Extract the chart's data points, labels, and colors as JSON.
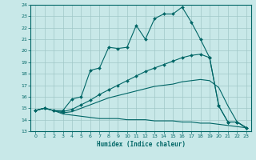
{
  "xlabel": "Humidex (Indice chaleur)",
  "background_color": "#c8e8e8",
  "grid_color": "#a0c8c8",
  "line_color": "#006666",
  "xlim": [
    -0.5,
    23.5
  ],
  "ylim": [
    13,
    24
  ],
  "x_ticks": [
    0,
    1,
    2,
    3,
    4,
    5,
    6,
    7,
    8,
    9,
    10,
    11,
    12,
    13,
    14,
    15,
    16,
    17,
    18,
    19,
    20,
    21,
    22,
    23
  ],
  "y_ticks": [
    13,
    14,
    15,
    16,
    17,
    18,
    19,
    20,
    21,
    22,
    23,
    24
  ],
  "line1_x": [
    0,
    1,
    2,
    3,
    4,
    5,
    6,
    7,
    8,
    9,
    10,
    11,
    12,
    13,
    14,
    15,
    16,
    17,
    18,
    19,
    20,
    21,
    22,
    23
  ],
  "line1_y": [
    14.8,
    15.0,
    14.8,
    14.8,
    15.8,
    16.0,
    18.3,
    18.5,
    20.3,
    20.2,
    20.3,
    22.2,
    21.0,
    22.8,
    23.2,
    23.2,
    23.8,
    22.5,
    21.0,
    19.4,
    15.2,
    13.8,
    13.8,
    13.3
  ],
  "line2_x": [
    0,
    1,
    2,
    3,
    4,
    5,
    6,
    7,
    8,
    9,
    10,
    11,
    12,
    13,
    14,
    15,
    16,
    17,
    18,
    19,
    20,
    21,
    22,
    23
  ],
  "line2_y": [
    14.8,
    15.0,
    14.8,
    14.7,
    14.9,
    15.3,
    15.7,
    16.2,
    16.6,
    17.0,
    17.4,
    17.8,
    18.2,
    18.5,
    18.8,
    19.1,
    19.4,
    19.6,
    19.7,
    19.4,
    15.2,
    13.8,
    13.8,
    13.3
  ],
  "line3_x": [
    0,
    1,
    2,
    3,
    4,
    5,
    6,
    7,
    8,
    9,
    10,
    11,
    12,
    13,
    14,
    15,
    16,
    17,
    18,
    19,
    20,
    21,
    22,
    23
  ],
  "line3_y": [
    14.8,
    15.0,
    14.8,
    14.6,
    14.7,
    15.0,
    15.3,
    15.6,
    15.9,
    16.1,
    16.3,
    16.5,
    16.7,
    16.9,
    17.0,
    17.1,
    17.3,
    17.4,
    17.5,
    17.4,
    16.8,
    15.2,
    13.8,
    13.3
  ],
  "line4_x": [
    0,
    1,
    2,
    3,
    4,
    5,
    6,
    7,
    8,
    9,
    10,
    11,
    12,
    13,
    14,
    15,
    16,
    17,
    18,
    19,
    20,
    21,
    22,
    23
  ],
  "line4_y": [
    14.8,
    15.0,
    14.8,
    14.5,
    14.4,
    14.3,
    14.2,
    14.1,
    14.1,
    14.1,
    14.0,
    14.0,
    14.0,
    13.9,
    13.9,
    13.9,
    13.8,
    13.8,
    13.7,
    13.7,
    13.6,
    13.5,
    13.4,
    13.3
  ]
}
